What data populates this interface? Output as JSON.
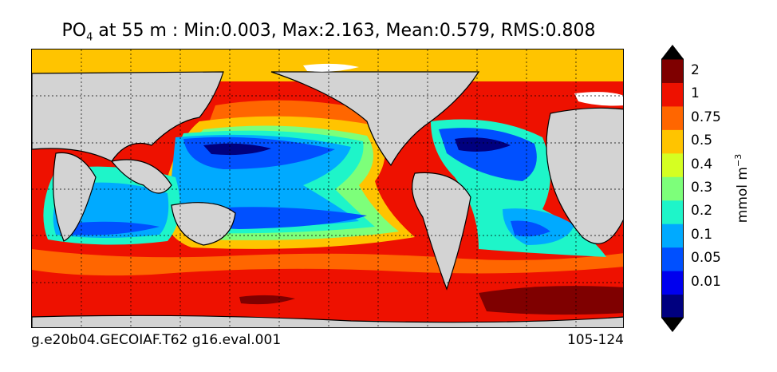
{
  "title": {
    "var_main": "PO",
    "var_sub": "4",
    "rest": " at 55 m : Min:0.003, Max:2.163, Mean:0.579, RMS:0.808"
  },
  "footer": {
    "left": "g.e20b04.GECOIAF.T62 g16.eval.001",
    "right": "105-124"
  },
  "colorbar": {
    "unit_main": "mmol m",
    "unit_sup": "−3",
    "levels": [
      {
        "label": "",
        "color": "#00007f"
      },
      {
        "label": "0.01",
        "color": "#0000ee"
      },
      {
        "label": "0.05",
        "color": "#0050ff"
      },
      {
        "label": "0.1",
        "color": "#00aaff"
      },
      {
        "label": "0.2",
        "color": "#1ef5c9"
      },
      {
        "label": "0.3",
        "color": "#7dff7a"
      },
      {
        "label": "0.4",
        "color": "#d5ff22"
      },
      {
        "label": "0.5",
        "color": "#ffc400"
      },
      {
        "label": "0.75",
        "color": "#ff6600"
      },
      {
        "label": "1",
        "color": "#ee1100"
      },
      {
        "label": "2",
        "color": "#7f0000"
      }
    ]
  },
  "map": {
    "land_color": "#d3d3d3",
    "ice_color": "#ffffff"
  }
}
